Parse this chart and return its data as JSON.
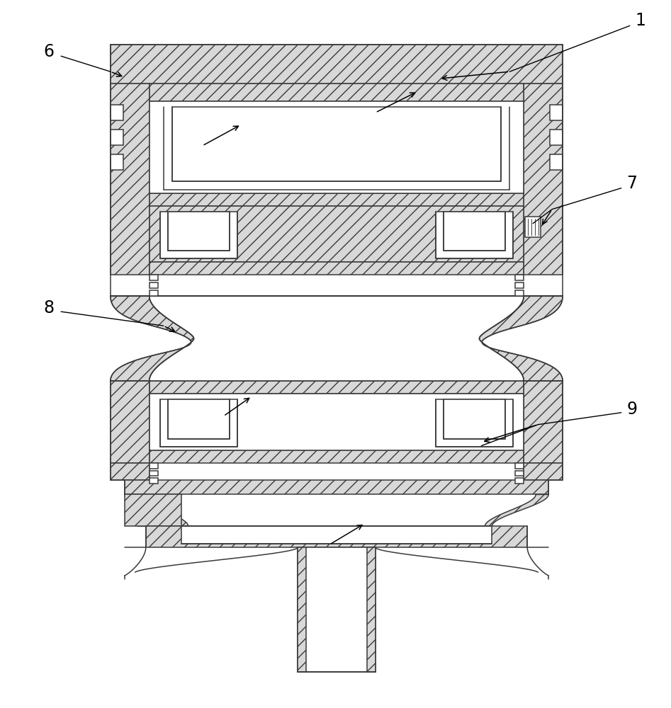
{
  "bg": "#ffffff",
  "lc": "#3a3a3a",
  "hc": "#d8d8d8",
  "fig_w": 9.47,
  "fig_h": 10.0,
  "dpi": 100
}
